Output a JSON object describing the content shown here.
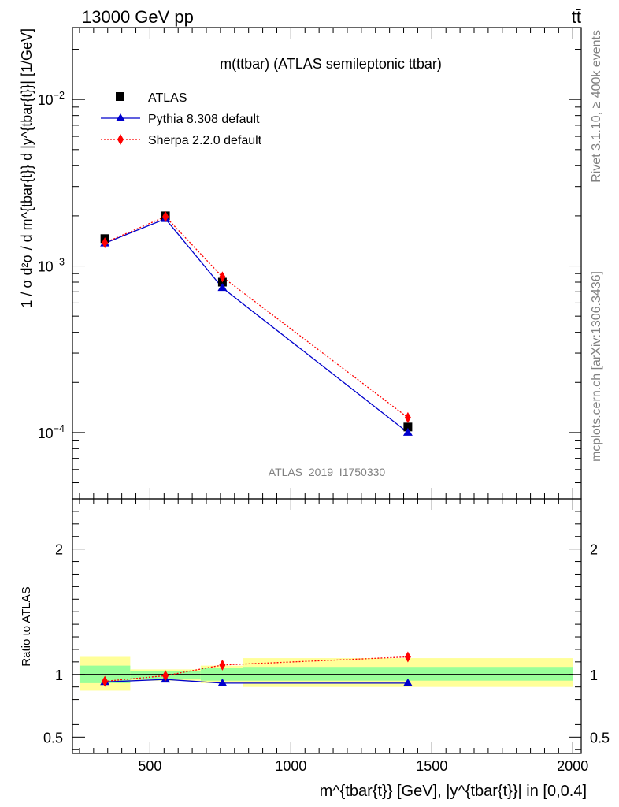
{
  "header": {
    "left": "13000 GeV pp",
    "right": "tt̄"
  },
  "side_labels": {
    "rivet": "Rivet 3.1.10, ≥ 400k events",
    "mcplots": "mcplots.cern.ch [arXiv:1306.3436]"
  },
  "main_title": "m(ttbar) (ATLAS semileptonic ttbar)",
  "analysis_label": "ATLAS_2019_I1750330",
  "y_label_main": "1 / σ d²σ / d m^{tbar{t}} d |y^{tbar{t}}| [1/GeV]",
  "y_label_ratio": "Ratio to ATLAS",
  "x_label": "m^{tbar{t}} [GeV], |y^{tbar{t}}| in [0,0.4]",
  "colors": {
    "atlas": "#000000",
    "pythia": "#0000cc",
    "sherpa": "#ff0000",
    "band_inner": "#99ff99",
    "band_outer": "#ffff99"
  },
  "chart_data": {
    "type": "scatter",
    "x_scale": "linear",
    "y_scale": "log",
    "xlim": [
      225,
      2030
    ],
    "ylim": [
      4e-05,
      0.027
    ],
    "ratio_ylim": [
      0.37,
      2.4
    ],
    "x_ticks": [
      "500",
      "1000",
      "1500",
      "2000"
    ],
    "y_ticks": [
      "10^{-4}",
      "10^{-3}",
      "10^{-2}"
    ],
    "ratio_ticks": [
      "0.5",
      "1",
      "2"
    ],
    "legend_position": "top-left",
    "x": [
      340,
      555,
      757,
      1415
    ],
    "bins": [
      [
        250,
        430
      ],
      [
        430,
        680
      ],
      [
        680,
        830
      ],
      [
        830,
        2000
      ]
    ],
    "series": [
      {
        "name": "ATLAS",
        "marker": "square",
        "values": [
          0.00146,
          0.002,
          0.0008,
          0.000108
        ]
      },
      {
        "name": "Pythia 8.308 default",
        "marker": "triangle",
        "line": "solid",
        "values": [
          0.00137,
          0.00192,
          0.00074,
          0.0001
        ]
      },
      {
        "name": "Sherpa 2.2.0 default",
        "marker": "diamond",
        "line": "dotted",
        "values": [
          0.00138,
          0.00198,
          0.00086,
          0.000123
        ]
      }
    ],
    "ratio": {
      "reference": 1.0,
      "pythia": [
        0.94,
        0.96,
        0.93,
        0.93
      ],
      "sherpa": [
        0.945,
        0.99,
        1.075,
        1.14
      ],
      "band_inner": [
        [
          0.93,
          1.07
        ],
        [
          0.96,
          1.03
        ],
        [
          0.95,
          1.05
        ],
        [
          0.95,
          1.06
        ]
      ],
      "band_outer": [
        [
          0.87,
          1.14
        ],
        [
          0.95,
          1.04
        ],
        [
          0.93,
          1.07
        ],
        [
          0.9,
          1.13
        ]
      ]
    }
  }
}
